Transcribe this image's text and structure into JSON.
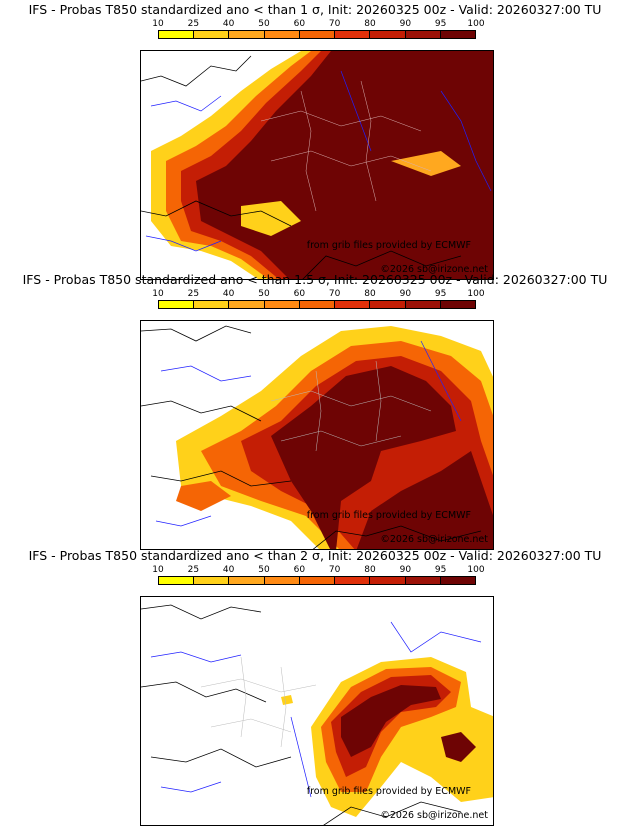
{
  "colors": {
    "scale": [
      "#ffff00",
      "#ffd11a",
      "#ffa81f",
      "#ff8a14",
      "#f56505",
      "#e0300a",
      "#c41e05",
      "#9c1208",
      "#6e0404"
    ],
    "coast": "#000000",
    "rivers": "#2020ff",
    "borders": "#c9c9c9"
  },
  "legend_ticks": [
    "10",
    "25",
    "40",
    "50",
    "60",
    "70",
    "80",
    "90",
    "95",
    "100"
  ],
  "panels": [
    {
      "title": "IFS - Probas T850  standardized ano < than 1 σ, Init: 20260325 00z - Valid: 20260327:00 TU",
      "source_note": "from grib files provided by ECMWF",
      "copyright": "©2026 sb@irizone.net"
    },
    {
      "title": "IFS - Probas T850  standardized ano < than 1.5 σ, Init: 20260325 00z - Valid: 20260327:00 TU",
      "source_note": "from grib files provided by ECMWF",
      "copyright": "©2026 sb@irizone.net"
    },
    {
      "title": "IFS - Probas T850  standardized ano < than 2 σ, Init: 20260325 00z - Valid: 20260327:00 TU",
      "source_note": "from grib files provided by ECMWF",
      "copyright": "©2026 sb@irizone.net"
    }
  ]
}
